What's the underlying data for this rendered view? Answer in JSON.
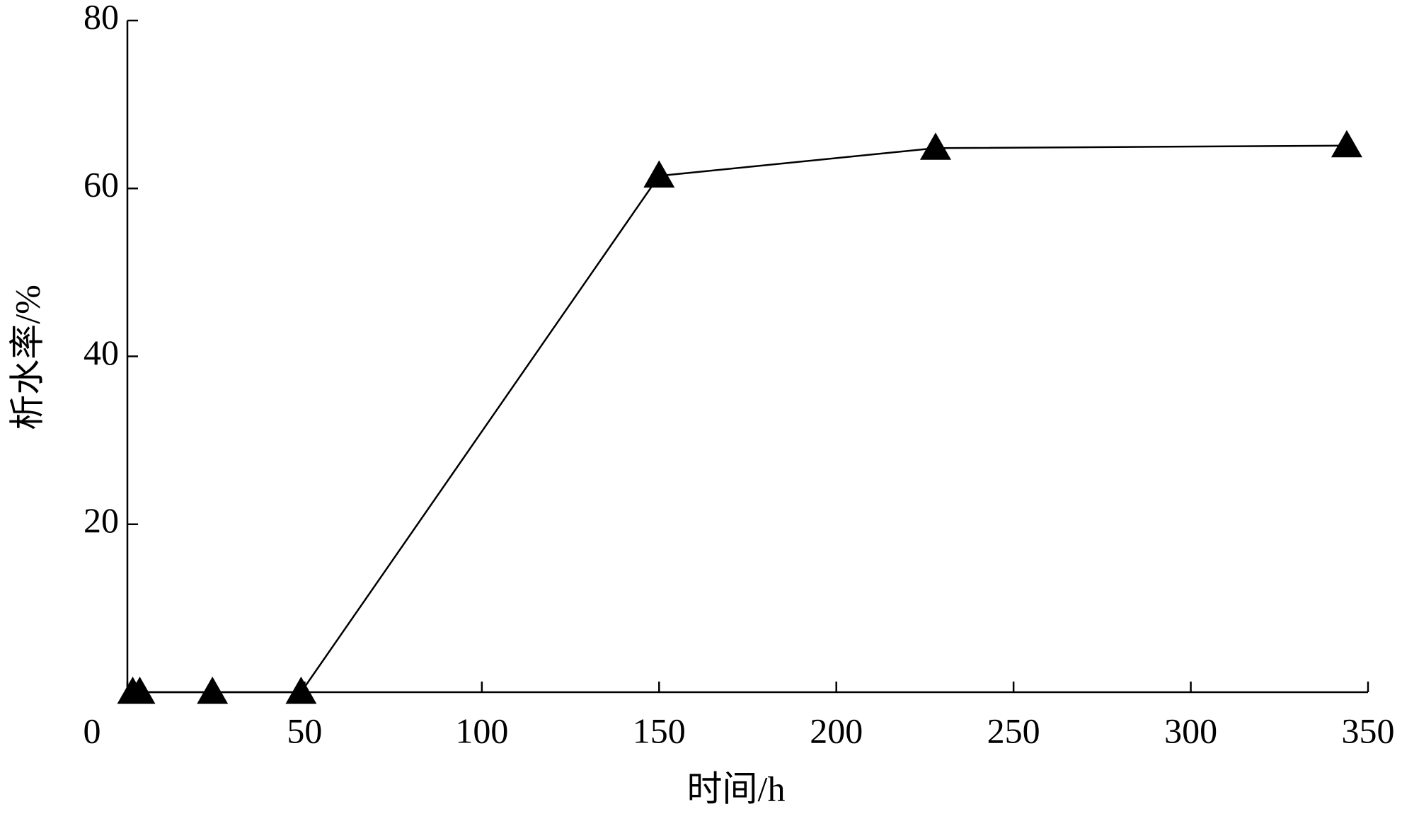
{
  "chart_data": {
    "type": "line",
    "x_label": "时间/h",
    "y_label": "析水率/%",
    "x": [
      1.5,
      3.5,
      24,
      49,
      150,
      228,
      344
    ],
    "series": [
      {
        "color": "#000000",
        "marker": "triangle",
        "values": [
          0,
          0,
          0,
          0,
          61.5,
          64.8,
          65.1
        ]
      }
    ],
    "xlim": [
      0,
      350
    ],
    "xticks": [
      0,
      50,
      100,
      150,
      200,
      250,
      300,
      350
    ],
    "ylim": [
      0,
      80
    ],
    "yticks": [
      20,
      40,
      60,
      80
    ],
    "grid": false
  }
}
